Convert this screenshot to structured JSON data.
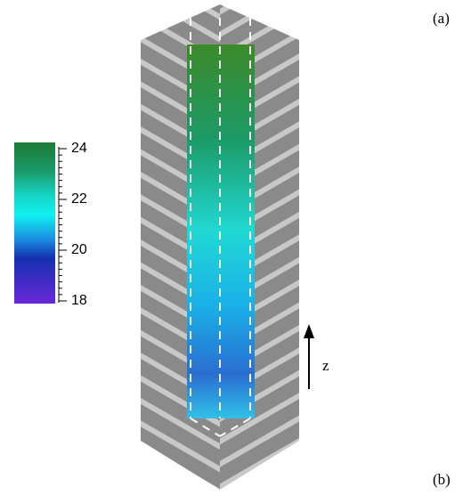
{
  "panel_labels": [
    "(a)",
    "(b)"
  ],
  "axis_label": "z",
  "colorbar": {
    "lim": [
      18,
      24
    ],
    "ticks": [
      18,
      20,
      22,
      24
    ]
  }
}
